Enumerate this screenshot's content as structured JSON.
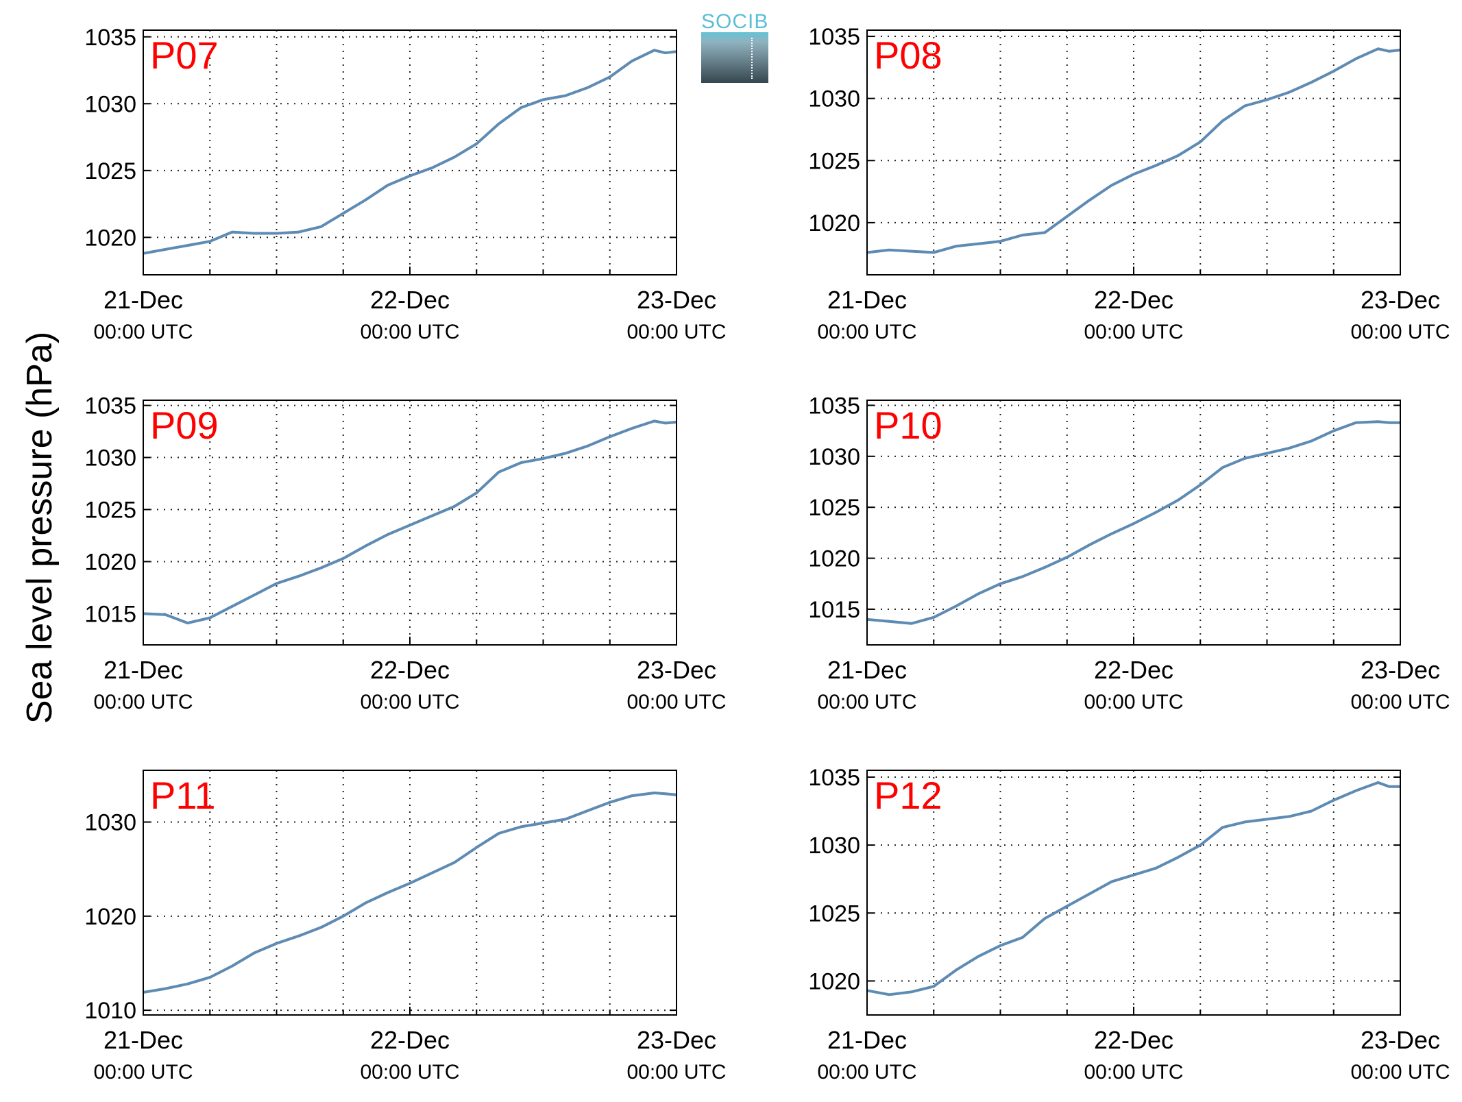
{
  "figure": {
    "ylabel": "Sea level pressure (hPa)",
    "logo_text": "SOCIB"
  },
  "chart_data": [
    {
      "type": "line",
      "label": "P07",
      "x_ticks": [
        {
          "top": "21-Dec",
          "bottom": "00:00 UTC"
        },
        {
          "top": "22-Dec",
          "bottom": "00:00 UTC"
        },
        {
          "top": "23-Dec",
          "bottom": "00:00 UTC"
        }
      ],
      "xlim": [
        0,
        48
      ],
      "ylim": [
        1017.2,
        1035.5
      ],
      "yticks": [
        1020,
        1025,
        1030,
        1035
      ],
      "grid": true,
      "line_color": "#5e8bb3",
      "series": [
        {
          "x": [
            0,
            2,
            4,
            6,
            8,
            10,
            12,
            14,
            16,
            18,
            20,
            22,
            24,
            26,
            28,
            30,
            32,
            34,
            36,
            38,
            40,
            42,
            44,
            46,
            47,
            48
          ],
          "values": [
            1018.8,
            1019.1,
            1019.4,
            1019.7,
            1020.4,
            1020.3,
            1020.3,
            1020.4,
            1020.8,
            1021.8,
            1022.8,
            1023.9,
            1024.6,
            1025.2,
            1026.0,
            1027.0,
            1028.5,
            1029.7,
            1030.3,
            1030.6,
            1031.2,
            1032.0,
            1033.2,
            1034.0,
            1033.8,
            1033.9
          ]
        }
      ],
      "label_color": "#ff0000"
    },
    {
      "type": "line",
      "label": "P08",
      "x_ticks": [
        {
          "top": "21-Dec",
          "bottom": "00:00 UTC"
        },
        {
          "top": "22-Dec",
          "bottom": "00:00 UTC"
        },
        {
          "top": "23-Dec",
          "bottom": "00:00 UTC"
        }
      ],
      "xlim": [
        0,
        48
      ],
      "ylim": [
        1015.8,
        1035.5
      ],
      "yticks": [
        1020,
        1025,
        1030,
        1035
      ],
      "grid": true,
      "line_color": "#5e8bb3",
      "series": [
        {
          "x": [
            0,
            2,
            4,
            6,
            8,
            10,
            12,
            14,
            16,
            18,
            20,
            22,
            24,
            26,
            28,
            30,
            32,
            34,
            36,
            38,
            40,
            42,
            44,
            46,
            47,
            48
          ],
          "values": [
            1017.6,
            1017.8,
            1017.7,
            1017.6,
            1018.1,
            1018.3,
            1018.5,
            1019.0,
            1019.2,
            1020.5,
            1021.8,
            1023.0,
            1023.9,
            1024.6,
            1025.4,
            1026.5,
            1028.2,
            1029.4,
            1029.9,
            1030.5,
            1031.3,
            1032.2,
            1033.2,
            1034.0,
            1033.8,
            1033.9
          ]
        }
      ],
      "label_color": "#ff0000"
    },
    {
      "type": "line",
      "label": "P09",
      "x_ticks": [
        {
          "top": "21-Dec",
          "bottom": "00:00 UTC"
        },
        {
          "top": "22-Dec",
          "bottom": "00:00 UTC"
        },
        {
          "top": "23-Dec",
          "bottom": "00:00 UTC"
        }
      ],
      "xlim": [
        0,
        48
      ],
      "ylim": [
        1012.0,
        1035.5
      ],
      "yticks": [
        1015,
        1020,
        1025,
        1030,
        1035
      ],
      "grid": true,
      "line_color": "#5e8bb3",
      "series": [
        {
          "x": [
            0,
            2,
            4,
            6,
            8,
            10,
            12,
            14,
            16,
            18,
            20,
            22,
            24,
            26,
            28,
            30,
            32,
            34,
            36,
            38,
            40,
            42,
            44,
            46,
            47,
            48
          ],
          "values": [
            1015.0,
            1014.9,
            1014.1,
            1014.6,
            1015.7,
            1016.8,
            1017.9,
            1018.6,
            1019.4,
            1020.3,
            1021.5,
            1022.6,
            1023.5,
            1024.4,
            1025.3,
            1026.6,
            1028.6,
            1029.5,
            1029.9,
            1030.4,
            1031.1,
            1032.0,
            1032.8,
            1033.5,
            1033.3,
            1033.4
          ]
        }
      ],
      "label_color": "#ff0000"
    },
    {
      "type": "line",
      "label": "P10",
      "x_ticks": [
        {
          "top": "21-Dec",
          "bottom": "00:00 UTC"
        },
        {
          "top": "22-Dec",
          "bottom": "00:00 UTC"
        },
        {
          "top": "23-Dec",
          "bottom": "00:00 UTC"
        }
      ],
      "xlim": [
        0,
        48
      ],
      "ylim": [
        1011.5,
        1035.5
      ],
      "yticks": [
        1015,
        1020,
        1025,
        1030,
        1035
      ],
      "grid": true,
      "line_color": "#5e8bb3",
      "series": [
        {
          "x": [
            0,
            2,
            4,
            6,
            8,
            10,
            12,
            14,
            16,
            18,
            20,
            22,
            24,
            26,
            28,
            30,
            32,
            34,
            36,
            38,
            40,
            42,
            44,
            46,
            47,
            48
          ],
          "values": [
            1014.0,
            1013.8,
            1013.6,
            1014.2,
            1015.3,
            1016.5,
            1017.5,
            1018.2,
            1019.1,
            1020.1,
            1021.3,
            1022.4,
            1023.4,
            1024.5,
            1025.7,
            1027.2,
            1028.9,
            1029.8,
            1030.3,
            1030.8,
            1031.5,
            1032.5,
            1033.3,
            1033.4,
            1033.3,
            1033.3
          ]
        }
      ],
      "label_color": "#ff0000"
    },
    {
      "type": "line",
      "label": "P11",
      "x_ticks": [
        {
          "top": "21-Dec",
          "bottom": "00:00 UTC"
        },
        {
          "top": "22-Dec",
          "bottom": "00:00 UTC"
        },
        {
          "top": "23-Dec",
          "bottom": "00:00 UTC"
        }
      ],
      "xlim": [
        0,
        48
      ],
      "ylim": [
        1009.5,
        1035.5
      ],
      "yticks": [
        1010,
        1020,
        1030
      ],
      "grid": true,
      "line_color": "#5e8bb3",
      "series": [
        {
          "x": [
            0,
            2,
            4,
            6,
            8,
            10,
            12,
            14,
            16,
            18,
            20,
            22,
            24,
            26,
            28,
            30,
            32,
            34,
            36,
            38,
            40,
            42,
            44,
            46,
            47,
            48
          ],
          "values": [
            1011.9,
            1012.3,
            1012.8,
            1013.5,
            1014.7,
            1016.1,
            1017.1,
            1017.9,
            1018.8,
            1020.0,
            1021.4,
            1022.5,
            1023.5,
            1024.6,
            1025.7,
            1027.3,
            1028.8,
            1029.5,
            1029.9,
            1030.3,
            1031.2,
            1032.1,
            1032.8,
            1033.1,
            1033.0,
            1032.9
          ]
        }
      ],
      "label_color": "#ff0000"
    },
    {
      "type": "line",
      "label": "P12",
      "x_ticks": [
        {
          "top": "21-Dec",
          "bottom": "00:00 UTC"
        },
        {
          "top": "22-Dec",
          "bottom": "00:00 UTC"
        },
        {
          "top": "23-Dec",
          "bottom": "00:00 UTC"
        }
      ],
      "xlim": [
        0,
        48
      ],
      "ylim": [
        1017.5,
        1035.5
      ],
      "yticks": [
        1020,
        1025,
        1030,
        1035
      ],
      "grid": true,
      "line_color": "#5e8bb3",
      "series": [
        {
          "x": [
            0,
            2,
            4,
            6,
            8,
            10,
            12,
            14,
            16,
            18,
            20,
            22,
            24,
            26,
            28,
            30,
            32,
            34,
            36,
            38,
            40,
            42,
            44,
            46,
            47,
            48
          ],
          "values": [
            1019.3,
            1019.0,
            1019.2,
            1019.6,
            1020.8,
            1021.8,
            1022.6,
            1023.2,
            1024.6,
            1025.5,
            1026.4,
            1027.3,
            1027.8,
            1028.3,
            1029.1,
            1030.0,
            1031.3,
            1031.7,
            1031.9,
            1032.1,
            1032.5,
            1033.3,
            1034.0,
            1034.6,
            1034.3,
            1034.3
          ]
        }
      ],
      "label_color": "#ff0000"
    }
  ]
}
